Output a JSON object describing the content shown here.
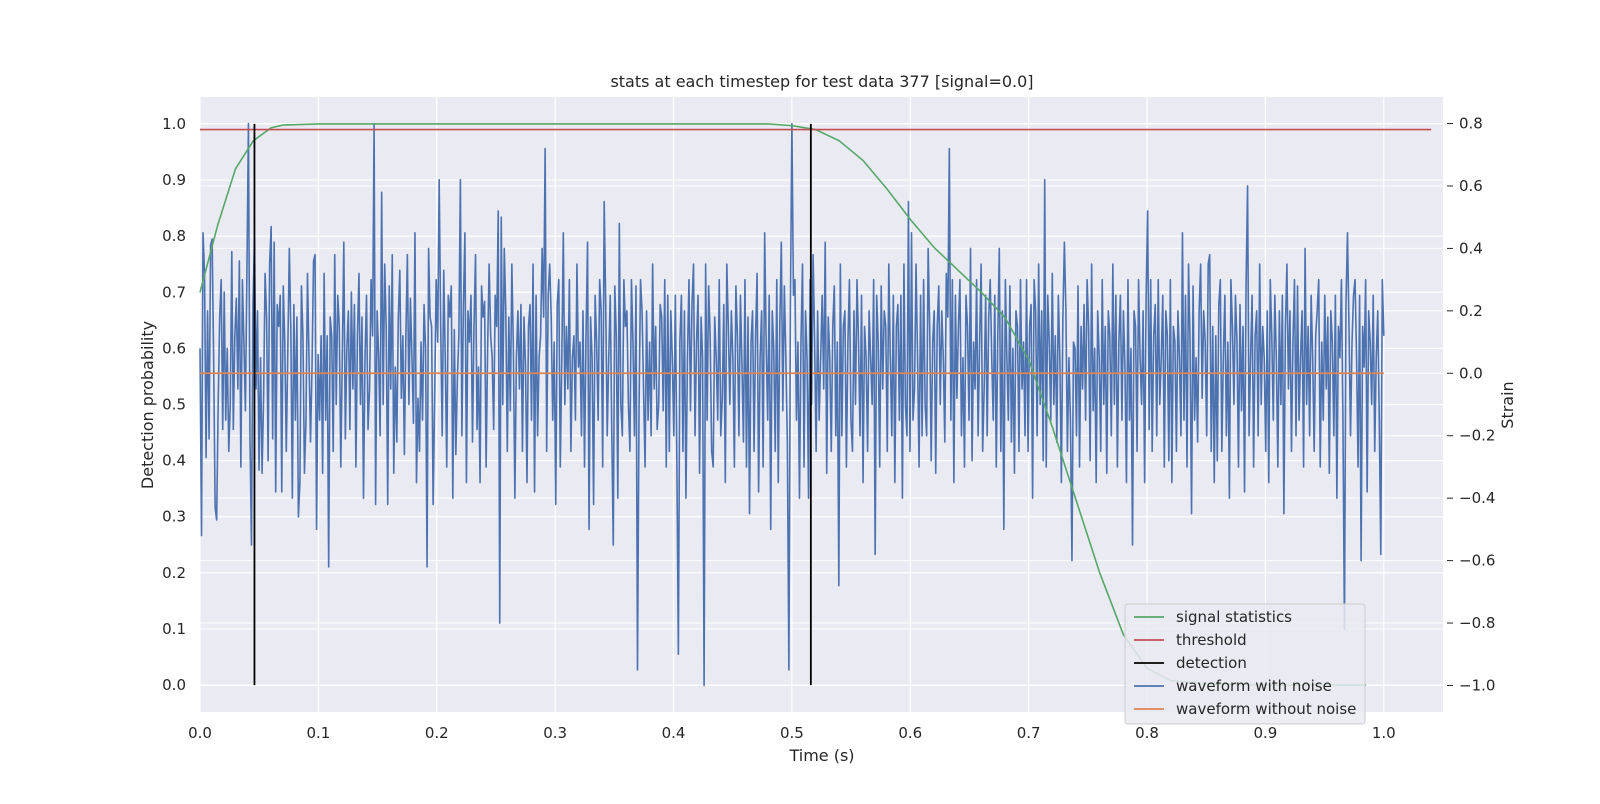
{
  "chart_data": {
    "type": "line",
    "title": "stats at each timestep for test data 377 [signal=0.0]",
    "xlabel": "Time (s)",
    "ylabel": "Detection probability",
    "y2label": "Strain",
    "xlim": [
      0.0,
      1.05
    ],
    "ylim": [
      -0.048,
      1.048
    ],
    "y2lim": [
      -1.085,
      0.885
    ],
    "x_ticks": [
      0.0,
      0.1,
      0.2,
      0.3,
      0.4,
      0.5,
      0.6,
      0.7,
      0.8,
      0.9,
      1.0
    ],
    "x_tick_labels": [
      "0.0",
      "0.1",
      "0.2",
      "0.3",
      "0.4",
      "0.5",
      "0.6",
      "0.7",
      "0.8",
      "0.9",
      "1.0"
    ],
    "y_ticks": [
      0.0,
      0.1,
      0.2,
      0.3,
      0.4,
      0.5,
      0.6,
      0.7,
      0.8,
      0.9,
      1.0
    ],
    "y_tick_labels": [
      "0.0",
      "0.1",
      "0.2",
      "0.3",
      "0.4",
      "0.5",
      "0.6",
      "0.7",
      "0.8",
      "0.9",
      "1.0"
    ],
    "y2_ticks": [
      -1.0,
      -0.8,
      -0.6,
      -0.4,
      -0.2,
      0.0,
      0.2,
      0.4,
      0.6,
      0.8
    ],
    "y2_tick_labels": [
      "−1.0",
      "−0.8",
      "−0.6",
      "−0.4",
      "−0.2",
      "0.0",
      "0.2",
      "0.4",
      "0.6",
      "0.8"
    ],
    "grid": true,
    "legend_position": "bottom-right",
    "colors": {
      "plot_background": "#eaeaf2",
      "grid": "#ffffff",
      "signal_statistics": "#55a868",
      "threshold": "#c44e52",
      "detection": "#000000",
      "waveform_with_noise": "#4c72b0",
      "waveform_without_noise": "#dd8452"
    },
    "series": [
      {
        "name": "signal statistics",
        "axis": "left",
        "color": "#55a868",
        "x": [
          0.0,
          0.015,
          0.03,
          0.045,
          0.06,
          0.07,
          0.1,
          0.2,
          0.3,
          0.4,
          0.48,
          0.5,
          0.52,
          0.54,
          0.56,
          0.58,
          0.6,
          0.62,
          0.64,
          0.66,
          0.68,
          0.7,
          0.72,
          0.74,
          0.76,
          0.78,
          0.8,
          0.82,
          0.85,
          0.9,
          0.95,
          0.985
        ],
        "y": [
          0.7,
          0.82,
          0.92,
          0.97,
          0.993,
          0.998,
          1.0,
          1.0,
          1.0,
          1.0,
          1.0,
          0.997,
          0.99,
          0.97,
          0.935,
          0.885,
          0.83,
          0.78,
          0.74,
          0.7,
          0.655,
          0.58,
          0.46,
          0.33,
          0.2,
          0.09,
          0.03,
          0.008,
          0.002,
          0.0,
          0.0,
          0.0
        ]
      },
      {
        "name": "threshold",
        "axis": "left",
        "color": "#c44e52",
        "x": [
          0.0,
          1.04
        ],
        "y": [
          0.99,
          0.99
        ]
      },
      {
        "name": "detection",
        "axis": "left",
        "color": "#000000",
        "lines_at_x": [
          0.046,
          0.516
        ],
        "ymin": 0.0,
        "ymax": 1.0
      },
      {
        "name": "waveform with noise",
        "axis": "right",
        "color": "#4c72b0",
        "x_start": 0.0,
        "x_end": 1.0,
        "values": [
          0.08,
          -0.52,
          0.45,
          0.32,
          -0.27,
          0.2,
          -0.21,
          0.41,
          0.43,
          0.05,
          -0.43,
          -0.47,
          -0.1,
          0.18,
          0.3,
          -0.18,
          0.26,
          -0.15,
          0.08,
          -0.25,
          -0.1,
          0.39,
          -0.18,
          0.12,
          0.24,
          -0.05,
          0.36,
          -0.3,
          0.3,
          0.1,
          -0.12,
          0.33,
          0.8,
          -0.2,
          -0.55,
          0.22,
          0.43,
          -0.05,
          0.2,
          -0.31,
          0.05,
          -0.32,
          -0.08,
          0.32,
          0.18,
          -0.28,
          0.35,
          0.47,
          -0.21,
          0.42,
          -0.38,
          0.22,
          0.15,
          0.25,
          -0.38,
          0.28,
          0.1,
          -0.25,
          0.07,
          0.4,
          0.14,
          -0.4,
          0.22,
          -0.15,
          0.18,
          -0.46,
          -0.35,
          0.28,
          0.12,
          -0.32,
          -0.15,
          0.32,
          0.05,
          -0.22,
          0.02,
          0.36,
          0.38,
          -0.5,
          0.06,
          -0.15,
          0.12,
          -0.32,
          0.32,
          -0.15,
          0.12,
          -0.62,
          0.18,
          0.12,
          -0.25,
          0.38,
          -0.1,
          0.25,
          0.15,
          -0.3,
          0.05,
          0.42,
          -0.21,
          0.08,
          0.2,
          -0.18,
          0.26,
          -0.05,
          0.22,
          -0.3,
          0.12,
          0.32,
          -0.1,
          0.18,
          -0.4,
          0.05,
          0.25,
          -0.18,
          -0.05,
          0.3,
          0.12,
          0.8,
          -0.42,
          0.2,
          0.06,
          -0.2,
          0.58,
          -0.1,
          0.35,
          0.15,
          -0.42,
          0.28,
          -0.05,
          0.38,
          -0.32,
          0.02,
          -0.22,
          0.18,
          0.33,
          -0.08,
          0.12,
          -0.26,
          0.12,
          0.38,
          -0.1,
          0.24,
          0.05,
          -0.16,
          0.45,
          -0.35,
          -0.08,
          -0.25,
          0.1,
          -0.15,
          0.22,
          0.08,
          -0.62,
          0.4,
          0.18,
          0.15,
          -0.42,
          -0.08,
          0.3,
          0.1,
          0.62,
          0.15,
          -0.2,
          0.33,
          0.05,
          -0.3,
          0.25,
          0.18,
          0.28,
          -0.4,
          0.14,
          -0.26,
          -0.02,
          0.12,
          0.62,
          -0.2,
          0.22,
          0.45,
          -0.35,
          0.2,
          0.1,
          0.25,
          -0.22,
          0.15,
          0.38,
          -0.18,
          0.02,
          -0.35,
          0.28,
          0.18,
          0.23,
          -0.3,
          0.08,
          0.35,
          0.12,
          0.05,
          -0.18,
          0.25,
          0.15,
          0.52,
          -0.8,
          0.5,
          -0.1,
          0.4,
          0.2,
          -0.25,
          0.18,
          -0.12,
          0.35,
          0.08,
          -0.4,
          0.05,
          0.2,
          -0.05,
          0.22,
          -0.25,
          0.18,
          0.03,
          -0.35,
          0.15,
          0.22,
          -0.15,
          0.35,
          -0.38,
          0.25,
          -0.2,
          0.05,
          0.12,
          0.4,
          0.18,
          0.72,
          -0.25,
          0.25,
          0.35,
          0.18,
          -0.15,
          0.1,
          -0.42,
          0.22,
          0.3,
          -0.3,
          0.05,
          0.45,
          -0.1,
          0.15,
          -0.05,
          0.3,
          -0.25,
          0.05,
          0.12,
          -0.15,
          0.35,
          0.02,
          0.1,
          -0.2,
          0.2,
          -0.3,
          0.12,
          0.42,
          -0.5,
          0.18,
          0.05,
          -0.42,
          0.25,
          0.1,
          -0.15,
          0.3,
          0.2,
          -0.3,
          0.55,
          0.22,
          -0.2,
          0.05,
          0.25,
          -0.18,
          -0.55,
          0.28,
          0.12,
          -0.4,
          0.48,
          -0.1,
          -0.2,
          0.3,
          0.15,
          0.2,
          -0.1,
          -0.25,
          0.3,
          0.1,
          -0.2,
          0.28,
          -0.95,
          -0.12,
          0.3,
          0.2,
          -0.05,
          -0.3,
          0.2,
          -0.15,
          0.1,
          -0.2,
          0.35,
          -0.05,
          0.15,
          -0.18,
          -0.1,
          0.22,
          0.18,
          -0.12,
          0.3,
          -0.3,
          0.25,
          -0.25,
          0.2,
          0.05,
          -0.2,
          0.25,
          -0.28,
          -0.9,
          0.1,
          0.25,
          -0.25,
          0.2,
          -0.4,
          0.05,
          0.3,
          -0.12,
          0.22,
          0.35,
          -0.2,
          0.1,
          0.25,
          -0.32,
          0.18,
          0.05,
          -1.0,
          0.35,
          -0.15,
          0.28,
          0.12,
          -0.25,
          -0.3,
          0.18,
          0.05,
          -0.15,
          0.3,
          -0.2,
          -0.08,
          0.22,
          -0.35,
          0.35,
          0.15,
          -0.1,
          0.2,
          0.05,
          -0.3,
          0.28,
          0.12,
          -0.2,
          0.25,
          0.03,
          -0.22,
          0.3,
          -0.3,
          0.18,
          -0.45,
          0.1,
          0.2,
          -0.25,
          0.12,
          0.32,
          -0.38,
          0.05,
          0.2,
          -0.3,
          0.45,
          0.1,
          -0.15,
          0.25,
          -0.5,
          0.2,
          0.08,
          -0.25,
          0.3,
          -0.35,
          0.15,
          0.42,
          -0.12,
          0.28,
          0.05,
          -0.22,
          -0.95,
          0.2,
          0.8,
          0.25,
          0.3,
          -0.15,
          0.1,
          -0.4,
          0.1,
          0.35,
          -0.3,
          0.2,
          0.05,
          -0.4,
          0.3,
          -0.1,
          0.38,
          0.1,
          -0.25,
          0.2,
          -0.15,
          0.05,
          0.25,
          -0.05,
          0.42,
          -0.32,
          0.18,
          0.05,
          -0.25,
          0.15,
          0.28,
          -0.2,
          0.1,
          -0.68,
          0.35,
          -0.2,
          0.15,
          0.2,
          -0.3,
          0.1,
          0.3,
          -0.15,
          -0.25,
          0.2,
          -0.1,
          0.3,
          0.1,
          -0.2,
          0.25,
          -0.35,
          0.15,
          0.05,
          -0.25,
          0.2,
          0.05,
          -0.1,
          0.3,
          -0.58,
          0.25,
          0.1,
          -0.3,
          0.28,
          -0.05,
          0.2,
          0.15,
          -0.25,
          0.35,
          0.05,
          -0.2,
          0.25,
          -0.35,
          0.15,
          0.22,
          -0.15,
          0.25,
          -0.4,
          0.35,
          -0.1,
          -0.2,
          0.55,
          -0.25,
          0.45,
          -0.15,
          -0.05,
          0.35,
          0.05,
          -0.3,
          0.25,
          -0.2,
          0.3,
          -0.1,
          -0.2,
          0.4,
          0.15,
          -0.28,
          0.1,
          0.2,
          -0.32,
          0.15,
          0.28,
          -0.1,
          0.2,
          0.05,
          -0.22,
          0.32,
          0.18,
          0.72,
          -0.15,
          0.3,
          -0.35,
          0.25,
          -0.08,
          0.15,
          0.3,
          -0.2,
          0.05,
          -0.3,
          0.25,
          0.15,
          -0.15,
          0.4,
          -0.28,
          0.1,
          -0.05,
          0.3,
          -0.2,
          0.1,
          0.35,
          -0.25,
          -0.05,
          0.25,
          -0.2,
          0.18,
          0.3,
          0.05,
          -0.15,
          0.25,
          -0.3,
          0.12,
          0.4,
          -0.25,
          0.2,
          -0.5,
          0.3,
          0.05,
          -0.15,
          0.28,
          -0.22,
          0.08,
          -0.32,
          0.2,
          0.15,
          -0.25,
          0.3,
          -0.05,
          0.1,
          -0.2,
          0.3,
          -0.25,
          0.15,
          0.22,
          -0.4,
          0.3,
          0.2,
          -0.2,
          0.35,
          -0.1,
          0.2,
          -0.28,
          0.62,
          -0.3,
          0.25,
          0.1,
          -0.15,
          0.32,
          -0.1,
          0.12,
          -0.22,
          0.25,
          0.05,
          -0.35,
          0.18,
          0.42,
          0.2,
          -0.25,
          0.05,
          -0.15,
          -0.6,
          0.1,
          0.08,
          -0.2,
          0.28,
          -0.3,
          0.15,
          -0.05,
          0.22,
          -0.15,
          0.3,
          0.15,
          -0.28,
          0.35,
          -0.12,
          0.08,
          -0.35,
          0.2,
          0.05,
          -0.25,
          0.3,
          -0.1,
          0.15,
          -0.32,
          0.2,
          0.12,
          -0.2,
          0.35,
          -0.1,
          0.25,
          -0.3,
          0.1,
          0.25,
          -0.15,
          0.2,
          0.02,
          -0.35,
          0.3,
          -0.15,
          0.08,
          -0.55,
          0.2,
          0.15,
          -0.25,
          0.3,
          0.05,
          -0.1,
          0.2,
          -0.35,
          0.25,
          0.52,
          -0.18,
          0.3,
          -0.25,
          0.12,
          0.22,
          -0.2,
          0.3,
          -0.1,
          0.05,
          0.25,
          -0.3,
          0.2,
          0.12,
          -0.28,
          0.3,
          -0.35,
          0.15,
          0.1,
          -0.25,
          0.2,
          0.05,
          -0.2,
          0.45,
          -0.15,
          0.25,
          -0.3,
          0.35,
          0.1,
          -0.45,
          0.28,
          -0.15,
          0.05,
          -0.22,
          0.2,
          0.35,
          -0.08,
          0.2,
          0.1,
          -0.2,
          0.35,
          0.38,
          -0.25,
          0.15,
          -0.35,
          0.12,
          -0.28,
          0.22,
          0.3,
          -0.25,
          0.05,
          0.25,
          -0.2,
          0.1,
          -0.4,
          0.3,
          0.15,
          -0.1,
          0.25,
          0.1,
          -0.3,
          0.22,
          -0.12,
          0.15,
          -0.38,
          0.28,
          0.6,
          -0.2,
          0.05,
          0.25,
          -0.3,
          0.12,
          0.2,
          -0.2,
          0.35,
          -0.1,
          0.15,
          0.05,
          -0.25,
          0.2,
          -0.35,
          0.3,
          0.12,
          -0.15,
          0.25,
          0.05,
          -0.3,
          0.2,
          -0.1,
          0.25,
          -0.45,
          0.15,
          0.35,
          -0.05,
          0.2,
          -0.25,
          0.1,
          0.3,
          -0.2,
          0.28,
          -0.15,
          0.05,
          0.2,
          -0.3,
          0.4,
          -0.1,
          0.15,
          -0.2,
          0.25,
          0.05,
          -0.25,
          0.12,
          0.2,
          0.3,
          -0.3,
          0.1,
          -0.15,
          0.25,
          -0.05,
          0.18,
          -0.32,
          0.2,
          0.1,
          -0.2,
          0.25,
          -0.4,
          0.15,
          0.05,
          0.3,
          -0.15,
          -0.82,
          0.22,
          0.45,
          0.15,
          -0.2,
          0.1,
          0.25,
          0.3,
          0.05,
          -0.3,
          0.25,
          -0.6,
          0.15,
          0.02,
          0.3,
          -0.38,
          0.2,
          0.1,
          -0.1,
          0.25,
          -0.25,
          0.05,
          0.2,
          -0.15,
          -0.58,
          0.3,
          0.12
        ]
      },
      {
        "name": "waveform without noise",
        "axis": "right",
        "color": "#dd8452",
        "x": [
          0.0,
          1.0
        ],
        "y": [
          0.0,
          0.0
        ]
      }
    ],
    "legend": [
      "signal statistics",
      "threshold",
      "detection",
      "waveform with noise",
      "waveform without noise"
    ]
  }
}
